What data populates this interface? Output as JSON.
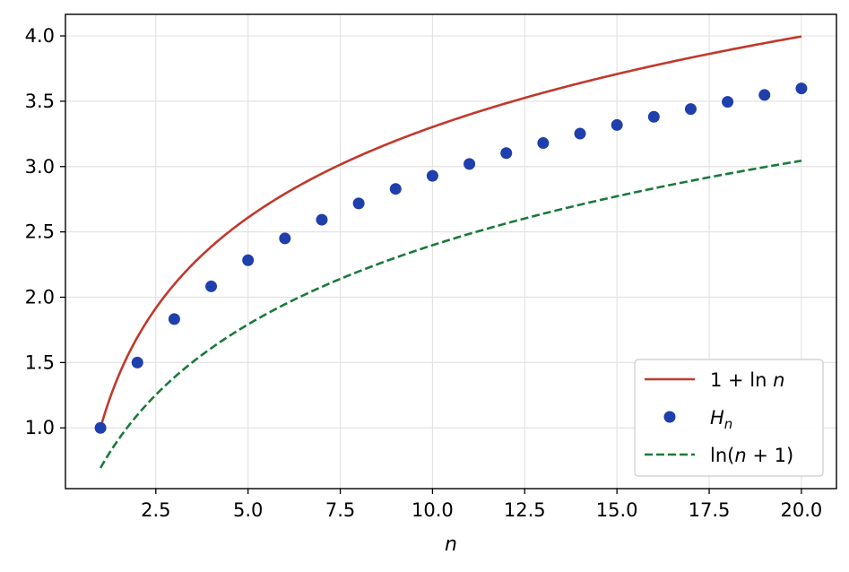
{
  "chart_data": {
    "type": "line",
    "title": "",
    "xlabel": "n",
    "ylabel": "",
    "xlim": [
      0.05,
      20.95
    ],
    "ylim": [
      0.535,
      4.165
    ],
    "grid": true,
    "legend_position": "lower-right",
    "x_ticks": [
      2.5,
      5.0,
      7.5,
      10.0,
      12.5,
      15.0,
      17.5,
      20.0
    ],
    "x_tick_labels": [
      "2.5",
      "5.0",
      "7.5",
      "10.0",
      "12.5",
      "15.0",
      "17.5",
      "20.0"
    ],
    "y_ticks": [
      1.0,
      1.5,
      2.0,
      2.5,
      3.0,
      3.5,
      4.0
    ],
    "y_tick_labels": [
      "1.0",
      "1.5",
      "2.0",
      "2.5",
      "3.0",
      "3.5",
      "4.0"
    ],
    "series": [
      {
        "name": "1 + ln n",
        "legend_parts": [
          "1 + ln ",
          "n"
        ],
        "kind": "line",
        "style": "solid",
        "color": "#c0392b",
        "x_range": [
          1,
          20
        ],
        "function": "1 + ln(n)"
      },
      {
        "name": "H_n",
        "legend_parts": [
          "H",
          "n"
        ],
        "kind": "scatter",
        "color": "#1f3fad",
        "x": [
          1,
          2,
          3,
          4,
          5,
          6,
          7,
          8,
          9,
          10,
          11,
          12,
          13,
          14,
          15,
          16,
          17,
          18,
          19,
          20
        ],
        "y": [
          1.0,
          1.5,
          1.833,
          2.083,
          2.283,
          2.45,
          2.593,
          2.718,
          2.829,
          2.929,
          3.02,
          3.103,
          3.18,
          3.252,
          3.318,
          3.381,
          3.44,
          3.495,
          3.548,
          3.598
        ]
      },
      {
        "name": "ln(n + 1)",
        "legend_parts": [
          "ln(",
          "n",
          " + 1)"
        ],
        "kind": "line",
        "style": "dashed",
        "color": "#1a7a3a",
        "x_range": [
          1,
          20
        ],
        "function": "ln(n + 1)"
      }
    ]
  }
}
